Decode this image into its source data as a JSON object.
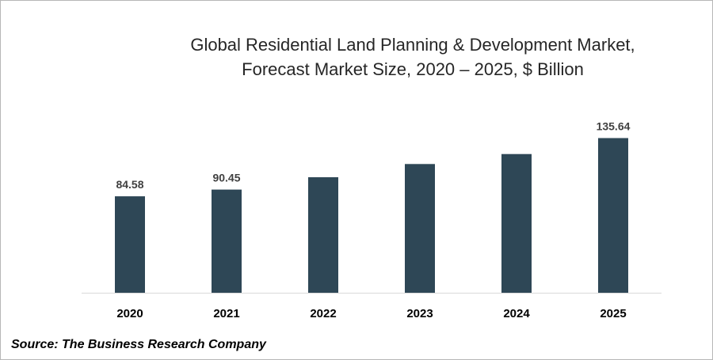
{
  "chart_data": {
    "type": "bar",
    "title_line1": "Global Residential Land Planning & Development Market,",
    "title_line2": "Forecast Market Size, 2020 – 2025, $ Billion",
    "categories": [
      "2020",
      "2021",
      "2022",
      "2023",
      "2024",
      "2025"
    ],
    "values": [
      84.58,
      90.45,
      101.3,
      112.9,
      121.6,
      135.64
    ],
    "data_labels": [
      "84.58",
      "90.45",
      "",
      "",
      "",
      "135.64"
    ],
    "ylim": [
      0,
      145
    ],
    "bar_color": "#2e4756",
    "axis_color": "#d9d9d9",
    "grid": false,
    "legend": "none",
    "xlabel": "",
    "ylabel": ""
  },
  "source_text": "Source: The Business Research Company"
}
